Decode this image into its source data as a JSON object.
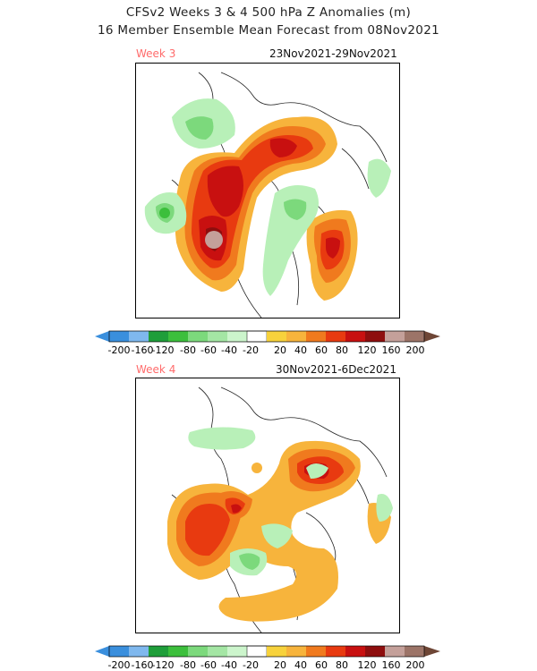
{
  "title": {
    "line1": "CFSv2 Weeks 3 & 4 500 hPa Z Anomalies (m)",
    "line2": "16 Member Ensemble Mean Forecast from 08Nov2021"
  },
  "panels": [
    {
      "week_label": "Week 3",
      "date_range": "23Nov2021-29Nov2021"
    },
    {
      "week_label": "Week 4",
      "date_range": "30Nov2021-6Dec2021"
    }
  ],
  "colorbar": {
    "ticks": [
      "-200",
      "-160",
      "-120",
      "-80",
      "-60",
      "-40",
      "-20",
      "20",
      "40",
      "60",
      "80",
      "120",
      "160",
      "200"
    ],
    "colors": [
      "#3a8fdd",
      "#7fb8ee",
      "#b8daf5",
      "#1f9e3a",
      "#3cbf3c",
      "#7cd97c",
      "#b8f0b8",
      "#ffffff",
      "#f7b43c",
      "#f07a1e",
      "#e83a10",
      "#c81010",
      "#8e0e0e",
      "#c4a09a",
      "#9c7468",
      "#6e4636"
    ]
  }
}
